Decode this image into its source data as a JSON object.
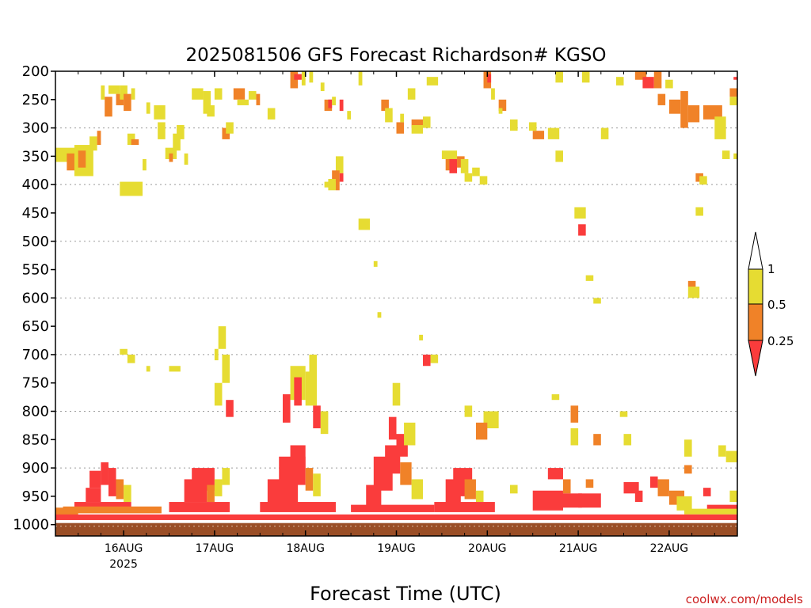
{
  "chart_data": {
    "type": "heatmap",
    "title": "2025081506 GFS Forecast Richardson# KGSO",
    "xlabel": "Forecast Time (UTC)",
    "credit": "coolwx.com/models",
    "x_unit": "hours after 2025-08-15 06Z",
    "xlim": [
      0,
      180
    ],
    "x_ticks": [
      {
        "x": 18,
        "label": "16AUG",
        "sub": "2025"
      },
      {
        "x": 42,
        "label": "17AUG",
        "sub": ""
      },
      {
        "x": 66,
        "label": "18AUG",
        "sub": ""
      },
      {
        "x": 90,
        "label": "19AUG",
        "sub": ""
      },
      {
        "x": 114,
        "label": "20AUG",
        "sub": ""
      },
      {
        "x": 138,
        "label": "21AUG",
        "sub": ""
      },
      {
        "x": 162,
        "label": "22AUG",
        "sub": ""
      }
    ],
    "ylabel": "",
    "y_unit": "hPa",
    "ylim": [
      1020,
      200
    ],
    "y_ticks": [
      200,
      250,
      300,
      350,
      400,
      450,
      500,
      550,
      600,
      650,
      700,
      750,
      800,
      850,
      900,
      950,
      1000
    ],
    "grid": {
      "horizontal_dotted": true,
      "levels": [
        300,
        400,
        500,
        600,
        700,
        800,
        900,
        1000
      ]
    },
    "legend": {
      "placement": "right",
      "entries": [
        {
          "label": "1",
          "color": "#ffffff"
        },
        {
          "label": "0.5",
          "color": "#e6dc32"
        },
        {
          "label": "0.25",
          "color": "#f08228"
        },
        {
          "label": "",
          "color": "#fa3c3c"
        }
      ]
    },
    "colors": {
      "yellow": "#e6dc32",
      "orange": "#f08228",
      "red": "#fa3c3c",
      "ground": "#9a4e26"
    },
    "ground_level_hPa": 1000,
    "cells": [
      [
        0,
        6,
        335,
        360,
        "y"
      ],
      [
        3,
        7,
        345,
        375,
        "o"
      ],
      [
        5,
        10,
        330,
        385,
        "y"
      ],
      [
        6,
        8,
        340,
        370,
        "o"
      ],
      [
        9,
        11,
        315,
        340,
        "y"
      ],
      [
        11,
        12,
        305,
        330,
        "o"
      ],
      [
        12,
        13,
        225,
        250,
        "y"
      ],
      [
        13,
        15,
        245,
        280,
        "o"
      ],
      [
        14,
        17,
        225,
        240,
        "y"
      ],
      [
        16,
        18,
        240,
        260,
        "o"
      ],
      [
        17,
        19,
        225,
        250,
        "y"
      ],
      [
        18,
        20,
        240,
        270,
        "o"
      ],
      [
        20,
        21,
        230,
        250,
        "y"
      ],
      [
        19,
        21,
        310,
        330,
        "y"
      ],
      [
        17,
        23,
        395,
        420,
        "y"
      ],
      [
        20,
        22,
        320,
        330,
        "o"
      ],
      [
        23,
        24,
        355,
        375,
        "y"
      ],
      [
        24,
        25,
        255,
        275,
        "y"
      ],
      [
        26,
        29,
        260,
        285,
        "y"
      ],
      [
        27,
        29,
        290,
        320,
        "y"
      ],
      [
        29,
        32,
        335,
        355,
        "y"
      ],
      [
        30,
        31,
        345,
        360,
        "o"
      ],
      [
        31,
        33,
        310,
        340,
        "y"
      ],
      [
        32,
        34,
        295,
        320,
        "y"
      ],
      [
        34,
        35,
        345,
        365,
        "y"
      ],
      [
        36,
        39,
        230,
        250,
        "y"
      ],
      [
        39,
        41,
        235,
        275,
        "y"
      ],
      [
        40,
        42,
        260,
        280,
        "y"
      ],
      [
        42,
        44,
        230,
        250,
        "y"
      ],
      [
        44,
        46,
        300,
        320,
        "o"
      ],
      [
        45,
        47,
        290,
        310,
        "y"
      ],
      [
        47,
        50,
        230,
        250,
        "o"
      ],
      [
        48,
        51,
        250,
        260,
        "y"
      ],
      [
        51,
        53,
        235,
        250,
        "y"
      ],
      [
        53,
        54,
        240,
        260,
        "o"
      ],
      [
        56,
        58,
        265,
        285,
        "y"
      ],
      [
        62,
        64,
        200,
        230,
        "o"
      ],
      [
        63,
        65,
        205,
        215,
        "r"
      ],
      [
        65,
        66,
        200,
        225,
        "y"
      ],
      [
        67,
        68,
        200,
        220,
        "y"
      ],
      [
        70,
        71,
        220,
        235,
        "y"
      ],
      [
        71,
        73,
        250,
        270,
        "o"
      ],
      [
        72,
        73,
        250,
        265,
        "r"
      ],
      [
        73,
        74,
        245,
        260,
        "y"
      ],
      [
        75,
        76,
        250,
        270,
        "r"
      ],
      [
        77,
        78,
        270,
        285,
        "y"
      ],
      [
        74,
        76,
        350,
        380,
        "y"
      ],
      [
        73,
        75,
        375,
        395,
        "o"
      ],
      [
        75,
        76,
        380,
        395,
        "r"
      ],
      [
        72,
        74,
        390,
        410,
        "y"
      ],
      [
        74,
        75,
        390,
        410,
        "o"
      ],
      [
        71,
        73,
        395,
        405,
        "y"
      ],
      [
        80,
        81,
        200,
        225,
        "y"
      ],
      [
        86,
        88,
        250,
        270,
        "o"
      ],
      [
        87,
        89,
        265,
        290,
        "y"
      ],
      [
        90,
        92,
        290,
        310,
        "o"
      ],
      [
        91,
        92,
        275,
        290,
        "y"
      ],
      [
        94,
        97,
        285,
        300,
        "o"
      ],
      [
        94,
        97,
        295,
        310,
        "y"
      ],
      [
        97,
        99,
        280,
        300,
        "y"
      ],
      [
        93,
        95,
        230,
        250,
        "y"
      ],
      [
        98,
        101,
        210,
        225,
        "y"
      ],
      [
        102,
        106,
        340,
        355,
        "y"
      ],
      [
        103,
        106,
        355,
        375,
        "o"
      ],
      [
        104,
        106,
        355,
        380,
        "r"
      ],
      [
        106,
        108,
        350,
        370,
        "o"
      ],
      [
        107,
        109,
        355,
        380,
        "y"
      ],
      [
        110,
        112,
        370,
        385,
        "y"
      ],
      [
        108,
        110,
        380,
        395,
        "y"
      ],
      [
        112,
        114,
        385,
        400,
        "y"
      ],
      [
        113,
        115,
        200,
        230,
        "o"
      ],
      [
        114,
        115,
        205,
        220,
        "r"
      ],
      [
        115,
        116,
        230,
        250,
        "y"
      ],
      [
        117,
        119,
        250,
        270,
        "o"
      ],
      [
        117,
        118,
        265,
        275,
        "y"
      ],
      [
        120,
        122,
        285,
        305,
        "y"
      ],
      [
        126,
        129,
        305,
        320,
        "o"
      ],
      [
        125,
        127,
        290,
        305,
        "y"
      ],
      [
        132,
        134,
        200,
        220,
        "y"
      ],
      [
        139,
        141,
        200,
        220,
        "y"
      ],
      [
        148,
        150,
        210,
        225,
        "y"
      ],
      [
        153,
        156,
        200,
        215,
        "o"
      ],
      [
        155,
        158,
        210,
        230,
        "r"
      ],
      [
        158,
        160,
        200,
        230,
        "o"
      ],
      [
        161,
        163,
        215,
        230,
        "y"
      ],
      [
        159,
        161,
        240,
        260,
        "o"
      ],
      [
        162,
        165,
        250,
        275,
        "o"
      ],
      [
        165,
        167,
        235,
        300,
        "o"
      ],
      [
        167,
        170,
        260,
        290,
        "o"
      ],
      [
        171,
        176,
        260,
        285,
        "o"
      ],
      [
        174,
        177,
        280,
        320,
        "y"
      ],
      [
        178,
        180,
        230,
        245,
        "o"
      ],
      [
        178,
        180,
        245,
        260,
        "y"
      ],
      [
        179,
        180,
        210,
        215,
        "r"
      ],
      [
        181,
        183,
        230,
        245,
        "o"
      ],
      [
        180,
        183,
        220,
        235,
        "y"
      ],
      [
        169,
        171,
        380,
        395,
        "o"
      ],
      [
        170,
        172,
        385,
        400,
        "y"
      ],
      [
        176,
        178,
        340,
        355,
        "y"
      ],
      [
        179,
        181,
        345,
        355,
        "y"
      ],
      [
        138,
        140,
        470,
        490,
        "r"
      ],
      [
        140,
        142,
        560,
        570,
        "y"
      ],
      [
        142,
        144,
        600,
        610,
        "y"
      ],
      [
        167,
        170,
        580,
        600,
        "y"
      ],
      [
        167,
        169,
        570,
        580,
        "o"
      ],
      [
        169,
        171,
        440,
        455,
        "y"
      ],
      [
        144,
        146,
        300,
        320,
        "y"
      ],
      [
        130,
        133,
        300,
        320,
        "y"
      ],
      [
        132,
        134,
        340,
        360,
        "y"
      ],
      [
        137,
        140,
        440,
        460,
        "y"
      ],
      [
        80,
        83,
        460,
        480,
        "y"
      ],
      [
        84,
        85,
        535,
        545,
        "y"
      ],
      [
        85,
        86,
        625,
        635,
        "y"
      ],
      [
        96,
        97,
        665,
        675,
        "y"
      ],
      [
        97,
        99,
        700,
        720,
        "r"
      ],
      [
        99,
        101,
        700,
        715,
        "y"
      ],
      [
        17,
        19,
        690,
        700,
        "y"
      ],
      [
        19,
        21,
        700,
        715,
        "y"
      ],
      [
        24,
        25,
        720,
        730,
        "y"
      ],
      [
        30,
        33,
        720,
        730,
        "y"
      ],
      [
        42,
        43,
        690,
        710,
        "y"
      ],
      [
        43,
        45,
        650,
        690,
        "y"
      ],
      [
        44,
        46,
        700,
        750,
        "y"
      ],
      [
        42,
        44,
        750,
        790,
        "y"
      ],
      [
        45,
        47,
        780,
        810,
        "r"
      ],
      [
        62,
        66,
        720,
        780,
        "y"
      ],
      [
        63,
        65,
        740,
        790,
        "r"
      ],
      [
        60,
        62,
        770,
        820,
        "r"
      ],
      [
        66,
        69,
        730,
        790,
        "y"
      ],
      [
        67,
        69,
        700,
        740,
        "y"
      ],
      [
        68,
        70,
        790,
        830,
        "r"
      ],
      [
        70,
        72,
        800,
        840,
        "y"
      ],
      [
        89,
        91,
        750,
        790,
        "y"
      ],
      [
        88,
        90,
        810,
        850,
        "r"
      ],
      [
        90,
        93,
        840,
        880,
        "r"
      ],
      [
        92,
        95,
        820,
        860,
        "y"
      ],
      [
        113,
        117,
        800,
        830,
        "y"
      ],
      [
        111,
        114,
        820,
        850,
        "o"
      ],
      [
        108,
        110,
        790,
        810,
        "y"
      ],
      [
        131,
        133,
        770,
        780,
        "y"
      ],
      [
        136,
        138,
        790,
        820,
        "o"
      ],
      [
        136,
        138,
        830,
        860,
        "y"
      ],
      [
        142,
        144,
        840,
        860,
        "o"
      ],
      [
        149,
        151,
        800,
        810,
        "y"
      ],
      [
        150,
        152,
        840,
        860,
        "y"
      ],
      [
        166,
        168,
        850,
        880,
        "y"
      ],
      [
        175,
        177,
        860,
        880,
        "y"
      ],
      [
        177,
        180,
        870,
        890,
        "y"
      ],
      [
        8,
        12,
        935,
        960,
        "r"
      ],
      [
        9,
        12,
        905,
        935,
        "r"
      ],
      [
        12,
        14,
        890,
        930,
        "r"
      ],
      [
        14,
        16,
        900,
        950,
        "r"
      ],
      [
        16,
        18,
        920,
        955,
        "o"
      ],
      [
        18,
        20,
        930,
        960,
        "y"
      ],
      [
        5,
        20,
        960,
        975,
        "r"
      ],
      [
        2,
        28,
        968,
        980,
        "o"
      ],
      [
        34,
        40,
        920,
        960,
        "r"
      ],
      [
        36,
        42,
        900,
        940,
        "r"
      ],
      [
        40,
        42,
        930,
        960,
        "o"
      ],
      [
        42,
        44,
        920,
        950,
        "y"
      ],
      [
        44,
        46,
        900,
        930,
        "y"
      ],
      [
        30,
        46,
        960,
        978,
        "r"
      ],
      [
        56,
        64,
        920,
        975,
        "r"
      ],
      [
        59,
        66,
        880,
        930,
        "r"
      ],
      [
        62,
        66,
        860,
        900,
        "r"
      ],
      [
        66,
        68,
        900,
        940,
        "o"
      ],
      [
        68,
        70,
        910,
        950,
        "y"
      ],
      [
        54,
        74,
        960,
        978,
        "r"
      ],
      [
        82,
        86,
        930,
        970,
        "r"
      ],
      [
        84,
        89,
        880,
        940,
        "r"
      ],
      [
        87,
        91,
        860,
        910,
        "r"
      ],
      [
        91,
        94,
        890,
        930,
        "o"
      ],
      [
        94,
        97,
        920,
        955,
        "y"
      ],
      [
        78,
        100,
        965,
        978,
        "r"
      ],
      [
        103,
        107,
        920,
        965,
        "r"
      ],
      [
        105,
        110,
        900,
        950,
        "r"
      ],
      [
        108,
        111,
        920,
        955,
        "o"
      ],
      [
        111,
        113,
        940,
        960,
        "y"
      ],
      [
        100,
        116,
        960,
        978,
        "r"
      ],
      [
        120,
        122,
        930,
        945,
        "y"
      ],
      [
        126,
        134,
        940,
        975,
        "r"
      ],
      [
        130,
        134,
        900,
        920,
        "r"
      ],
      [
        134,
        136,
        920,
        945,
        "o"
      ],
      [
        133,
        139,
        945,
        970,
        "r"
      ],
      [
        140,
        142,
        920,
        935,
        "o"
      ],
      [
        138,
        144,
        945,
        970,
        "r"
      ],
      [
        150,
        154,
        925,
        945,
        "r"
      ],
      [
        153,
        155,
        940,
        960,
        "r"
      ],
      [
        157,
        159,
        915,
        935,
        "r"
      ],
      [
        159,
        162,
        920,
        950,
        "o"
      ],
      [
        162,
        166,
        940,
        965,
        "o"
      ],
      [
        164,
        168,
        950,
        975,
        "y"
      ],
      [
        166,
        168,
        895,
        910,
        "o"
      ],
      [
        172,
        180,
        965,
        978,
        "r"
      ],
      [
        178,
        180,
        940,
        960,
        "y"
      ],
      [
        171,
        173,
        935,
        950,
        "r"
      ],
      [
        166,
        180,
        972,
        982,
        "y"
      ],
      [
        0,
        6,
        970,
        985,
        "o"
      ],
      [
        0,
        180,
        982,
        992,
        "r"
      ]
    ]
  }
}
